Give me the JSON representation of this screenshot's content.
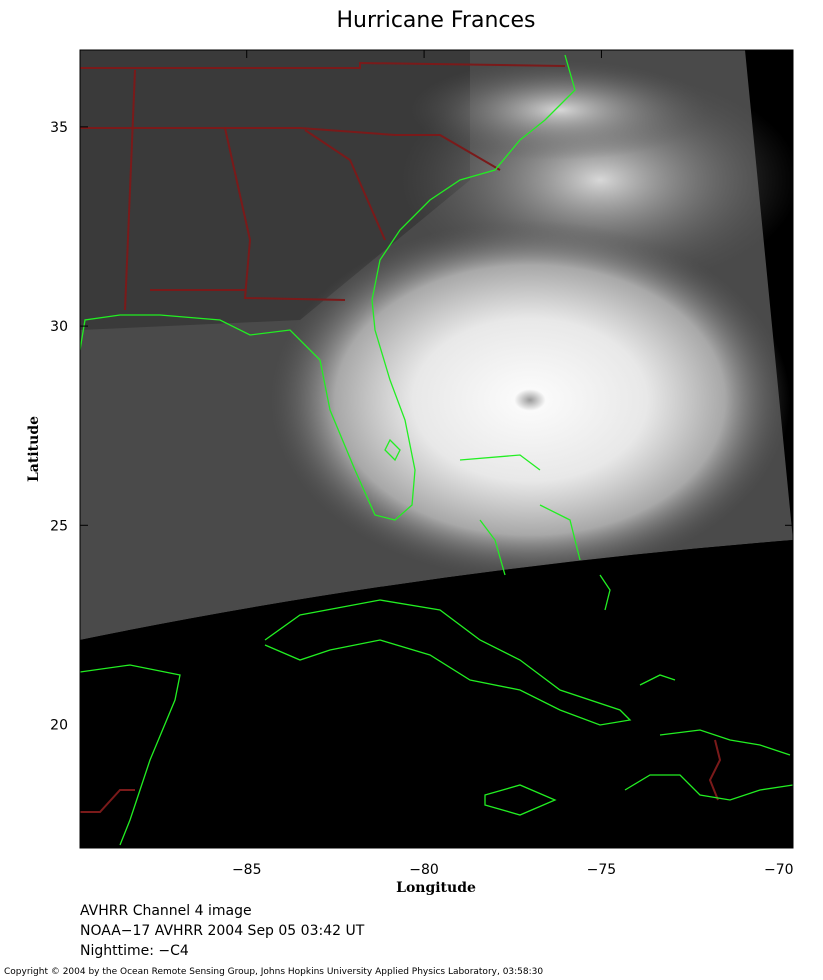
{
  "chart_data": {
    "type": "map",
    "title": "Hurricane Frances",
    "xlabel": "Longitude",
    "ylabel": "Latitude",
    "xlim": [
      -89.7,
      -69.6
    ],
    "ylim": [
      16.9,
      36.93
    ],
    "xticks": [
      {
        "value": -85,
        "label": "−85"
      },
      {
        "value": -80,
        "label": "−80"
      },
      {
        "value": -75,
        "label": "−75"
      },
      {
        "value": -70,
        "label": "−70"
      }
    ],
    "yticks": [
      20,
      25,
      30,
      35
    ],
    "notes": [
      "AVHRR Channel 4 image",
      "NOAA−17 AVHRR 2004 Sep 05 03:42 UT",
      "Nighttime: −C4"
    ],
    "copyright": "Copyright © 2004 by the Ocean Remote Sensing Group, Johns Hopkins University Applied Physics Laboratory, 03:58:30"
  }
}
